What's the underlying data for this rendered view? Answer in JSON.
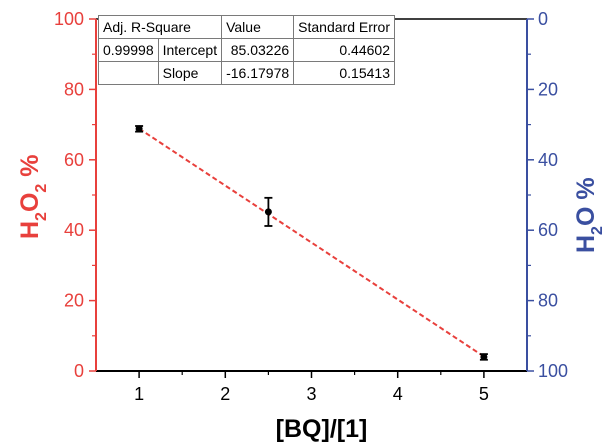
{
  "chart_data": {
    "type": "scatter",
    "x": [
      1,
      2.5,
      5
    ],
    "y": [
      68.8,
      45.2,
      4.0
    ],
    "yerr": [
      0.8,
      4.0,
      0.8
    ],
    "fit_line": {
      "x": [
        1,
        5
      ],
      "y": [
        68.85,
        4.13
      ],
      "style": "dashed"
    },
    "xlabel": "[BQ]/[1]",
    "ylabel_left": {
      "main": "H",
      "sub1": "2",
      "mid": "O",
      "sub2": "2",
      "end": " %"
    },
    "ylabel_right": {
      "main": "H",
      "sub1": "2",
      "mid": "O %"
    },
    "xlim": [
      0.5,
      5.5
    ],
    "ylim": [
      0,
      100
    ],
    "y2lim": [
      100,
      0
    ],
    "xticks": [
      "1",
      "2",
      "3",
      "4",
      "5"
    ],
    "yticks_left": [
      "0",
      "20",
      "40",
      "60",
      "80",
      "100"
    ],
    "yticks_right": [
      "0",
      "20",
      "40",
      "60",
      "80",
      "100"
    ],
    "colors": {
      "left_axis": "#e8403c",
      "right_axis": "#3a4fa0",
      "points": "#000000",
      "fit": "#e8403c"
    },
    "fit_table": {
      "headers": [
        "Adj. R-Square",
        "Value",
        "Standard Error"
      ],
      "r_square": "0.99998",
      "rows": [
        {
          "label": "Intercept",
          "value": "85.03226",
          "error": "0.44602"
        },
        {
          "label": "Slope",
          "value": "-16.17978",
          "error": "0.15413"
        }
      ]
    }
  }
}
